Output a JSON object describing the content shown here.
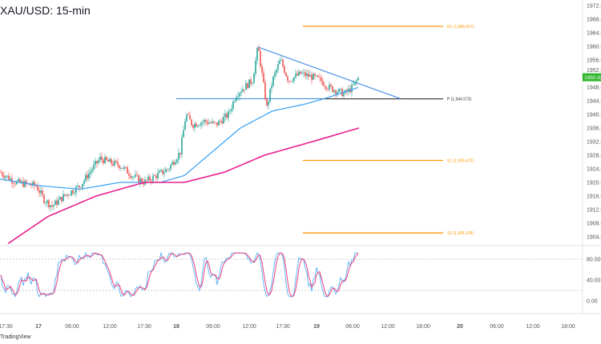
{
  "title": "XAU/USD: 15-min",
  "branding": "TradingView",
  "chart_data": {
    "type": "candlestick",
    "symbol": "XAU/USD",
    "timeframe": "15-min",
    "ylim": [
      1902,
      1974
    ],
    "y_ticks": [
      "1972.000",
      "1968.000",
      "1964.000",
      "1960.000",
      "1956.000",
      "1952.000",
      "1948.000",
      "1944.000",
      "1940.000",
      "1936.000",
      "1932.000",
      "1928.000",
      "1924.000",
      "1920.000",
      "1916.000",
      "1912.000",
      "1908.000",
      "1904.000"
    ],
    "last_price": "1950.920",
    "x_ticks": [
      "17:30",
      "17",
      "06:00",
      "12:00",
      "17:30",
      "18",
      "06:00",
      "12:00",
      "17:30",
      "19",
      "06:00",
      "12:00",
      "18:00",
      "20",
      "06:00",
      "12:00",
      "18:00"
    ],
    "bold_ticks": [
      "17",
      "18",
      "19",
      "20"
    ],
    "close_waypoints": [
      [
        0,
        1923
      ],
      [
        20,
        1920
      ],
      [
        45,
        1919
      ],
      [
        55,
        1915
      ],
      [
        65,
        1913
      ],
      [
        80,
        1916
      ],
      [
        100,
        1919
      ],
      [
        115,
        1924
      ],
      [
        125,
        1927
      ],
      [
        135,
        1926
      ],
      [
        150,
        1925
      ],
      [
        165,
        1922
      ],
      [
        180,
        1920
      ],
      [
        195,
        1922
      ],
      [
        210,
        1924
      ],
      [
        225,
        1929
      ],
      [
        232,
        1940
      ],
      [
        240,
        1937
      ],
      [
        255,
        1938
      ],
      [
        270,
        1937
      ],
      [
        285,
        1940
      ],
      [
        295,
        1946
      ],
      [
        305,
        1948
      ],
      [
        315,
        1950
      ],
      [
        322,
        1960
      ],
      [
        328,
        1950
      ],
      [
        333,
        1942
      ],
      [
        340,
        1950
      ],
      [
        350,
        1956
      ],
      [
        360,
        1950
      ],
      [
        375,
        1952
      ],
      [
        390,
        1951
      ],
      [
        400,
        1950
      ],
      [
        410,
        1948
      ],
      [
        420,
        1947
      ],
      [
        430,
        1946
      ],
      [
        440,
        1948
      ],
      [
        448,
        1951
      ]
    ],
    "ma_fast": [
      [
        0,
        1921
      ],
      [
        50,
        1919
      ],
      [
        100,
        1918
      ],
      [
        150,
        1920
      ],
      [
        200,
        1920
      ],
      [
        230,
        1922
      ],
      [
        260,
        1928
      ],
      [
        300,
        1936
      ],
      [
        340,
        1941
      ],
      [
        380,
        1943
      ],
      [
        410,
        1945
      ],
      [
        448,
        1948
      ]
    ],
    "ma_slow": [
      [
        10,
        1902
      ],
      [
        60,
        1910
      ],
      [
        120,
        1916
      ],
      [
        180,
        1920
      ],
      [
        230,
        1920
      ],
      [
        280,
        1923
      ],
      [
        330,
        1928
      ],
      [
        390,
        1932
      ],
      [
        448,
        1936
      ]
    ],
    "pivots": [
      {
        "label": "R1 (1,965.917)",
        "value": 1965.917,
        "color": "#ff9800"
      },
      {
        "label": "P (1,944.573)",
        "value": 1944.573,
        "color": "#333333"
      },
      {
        "label": "S1 (1,926.472)",
        "value": 1926.472,
        "color": "#ff9800"
      },
      {
        "label": "S2 (1,905.128)",
        "value": 1905.128,
        "color": "#ff9800"
      }
    ],
    "oscillator": {
      "y_ticks": [
        "80.00",
        "40.00",
        "0.00"
      ],
      "levels": [
        80,
        20
      ]
    },
    "colors": {
      "up": "#26a69a",
      "down": "#ef5350",
      "ma_fast": "#42a5f5",
      "ma_slow": "#e91e8c",
      "trend": "#4a90e2",
      "price_tag": "#2db52d"
    }
  }
}
